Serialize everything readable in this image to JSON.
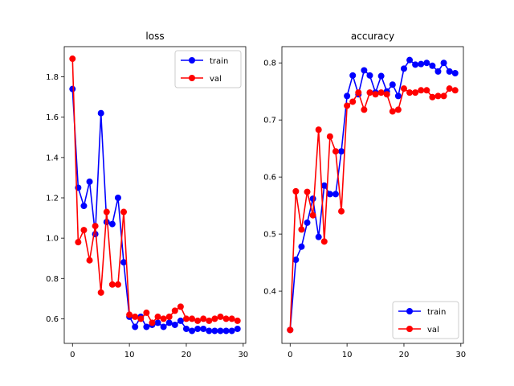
{
  "chart_data": [
    {
      "type": "line",
      "title": "loss",
      "xlabel": "",
      "ylabel": "",
      "xlim": [
        -1.45,
        30.45
      ],
      "ylim": [
        0.478,
        1.95
      ],
      "xticks": [
        0,
        10,
        20,
        30
      ],
      "yticks": [
        0.6,
        0.8,
        1.0,
        1.2,
        1.4,
        1.6,
        1.8
      ],
      "ytick_labels": [
        "0.6",
        "0.8",
        "1.0",
        "1.2",
        "1.4",
        "1.6",
        "1.8"
      ],
      "grid": false,
      "legend_position": "upper right",
      "x": [
        0,
        1,
        2,
        3,
        4,
        5,
        6,
        7,
        8,
        9,
        10,
        11,
        12,
        13,
        14,
        15,
        16,
        17,
        18,
        19,
        20,
        21,
        22,
        23,
        24,
        25,
        26,
        27,
        28,
        29
      ],
      "series": [
        {
          "name": "train",
          "color": "#0000ff",
          "values": [
            1.74,
            1.25,
            1.16,
            1.28,
            1.02,
            1.62,
            1.08,
            1.07,
            1.2,
            0.88,
            0.61,
            0.56,
            0.61,
            0.56,
            0.57,
            0.58,
            0.56,
            0.58,
            0.57,
            0.59,
            0.55,
            0.54,
            0.55,
            0.55,
            0.54,
            0.54,
            0.54,
            0.54,
            0.54,
            0.55
          ]
        },
        {
          "name": "val",
          "color": "#ff0000",
          "values": [
            1.89,
            0.98,
            1.04,
            0.89,
            1.06,
            0.73,
            1.13,
            0.77,
            0.77,
            1.13,
            0.62,
            0.61,
            0.6,
            0.63,
            0.58,
            0.61,
            0.6,
            0.61,
            0.64,
            0.66,
            0.6,
            0.6,
            0.59,
            0.6,
            0.59,
            0.6,
            0.61,
            0.6,
            0.6,
            0.59
          ]
        }
      ]
    },
    {
      "type": "line",
      "title": "accuracy",
      "xlabel": "",
      "ylabel": "",
      "xlim": [
        -1.45,
        30.45
      ],
      "ylim": [
        0.3085,
        0.8285
      ],
      "xticks": [
        0,
        10,
        20,
        30
      ],
      "yticks": [
        0.4,
        0.5,
        0.6,
        0.7,
        0.8
      ],
      "ytick_labels": [
        "0.4",
        "0.5",
        "0.6",
        "0.7",
        "0.8"
      ],
      "grid": false,
      "legend_position": "lower right",
      "x": [
        0,
        1,
        2,
        3,
        4,
        5,
        6,
        7,
        8,
        9,
        10,
        11,
        12,
        13,
        14,
        15,
        16,
        17,
        18,
        19,
        20,
        21,
        22,
        23,
        24,
        25,
        26,
        27,
        28,
        29
      ],
      "series": [
        {
          "name": "train",
          "color": "#0000ff",
          "values": [
            0.332,
            0.455,
            0.478,
            0.52,
            0.562,
            0.495,
            0.585,
            0.57,
            0.57,
            0.645,
            0.742,
            0.778,
            0.745,
            0.787,
            0.778,
            0.748,
            0.777,
            0.75,
            0.762,
            0.742,
            0.79,
            0.805,
            0.797,
            0.798,
            0.8,
            0.795,
            0.785,
            0.8,
            0.785,
            0.782
          ]
        },
        {
          "name": "val",
          "color": "#ff0000",
          "values": [
            0.332,
            0.575,
            0.508,
            0.574,
            0.533,
            0.683,
            0.487,
            0.671,
            0.645,
            0.54,
            0.725,
            0.732,
            0.748,
            0.718,
            0.748,
            0.745,
            0.748,
            0.745,
            0.715,
            0.718,
            0.755,
            0.748,
            0.748,
            0.752,
            0.752,
            0.74,
            0.742,
            0.742,
            0.755,
            0.752
          ]
        }
      ]
    }
  ]
}
